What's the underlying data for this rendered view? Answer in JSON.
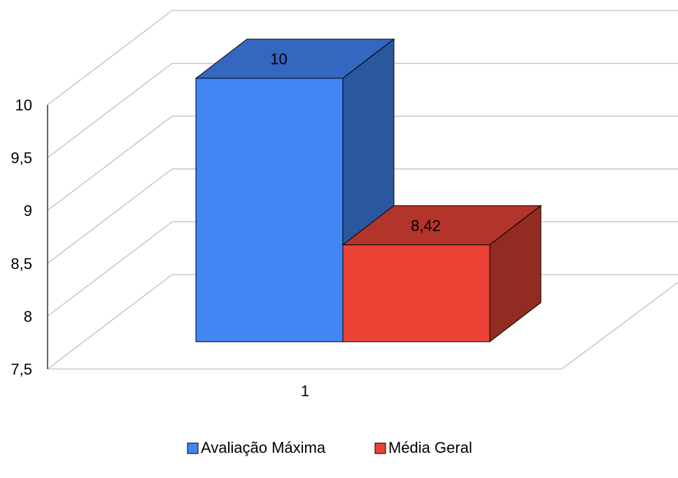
{
  "chart_data": {
    "type": "bar",
    "style": "3d-clustered-column",
    "categories": [
      "1"
    ],
    "series": [
      {
        "name": "Avaliação Máxima",
        "values": [
          10
        ],
        "data_labels": [
          "10"
        ],
        "color": "#4285F4",
        "side_color": "#2B579E",
        "top_color": "#3367C0"
      },
      {
        "name": "Média Geral",
        "values": [
          8.42
        ],
        "data_labels": [
          "8,42"
        ],
        "color": "#EA4335",
        "side_color": "#922B21",
        "top_color": "#B2342A"
      }
    ],
    "ylim": [
      7.5,
      10
    ],
    "yticks": [
      "7,5",
      "8",
      "8,5",
      "9",
      "9,5",
      "10"
    ],
    "ytick_values": [
      7.5,
      8,
      8.5,
      9,
      9.5,
      10
    ],
    "grid": true,
    "legend_position": "bottom",
    "title": "",
    "xlabel": "",
    "ylabel": "",
    "colors": {
      "grid": "#BFBFBF",
      "axis": "#000000",
      "outline": "#000000"
    }
  }
}
